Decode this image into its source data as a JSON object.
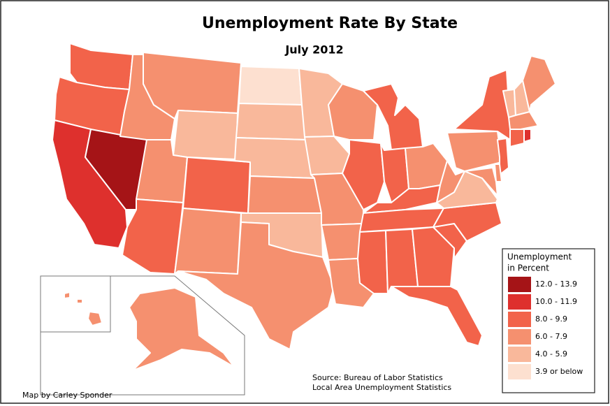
{
  "header": {
    "title": "Unemployment Rate By State",
    "subtitle": "July 2012"
  },
  "legend": {
    "title_lines": [
      "Unemployment",
      "in Percent"
    ],
    "items": [
      {
        "label": "12.0 - 13.9",
        "color": "#a51417"
      },
      {
        "label": "10.0 - 11.9",
        "color": "#de302d"
      },
      {
        "label": "8.0 - 9.9",
        "color": "#f2634a"
      },
      {
        "label": "6.0 - 7.9",
        "color": "#f5906f"
      },
      {
        "label": "4.0 - 5.9",
        "color": "#f9b89b"
      },
      {
        "label": "3.9 or below",
        "color": "#fde0d0"
      }
    ]
  },
  "source": [
    "Source:  Bureau of Labor Statistics",
    "Local Area Unemployment Statistics"
  ],
  "credit": "Map by Carley Sponder"
}
